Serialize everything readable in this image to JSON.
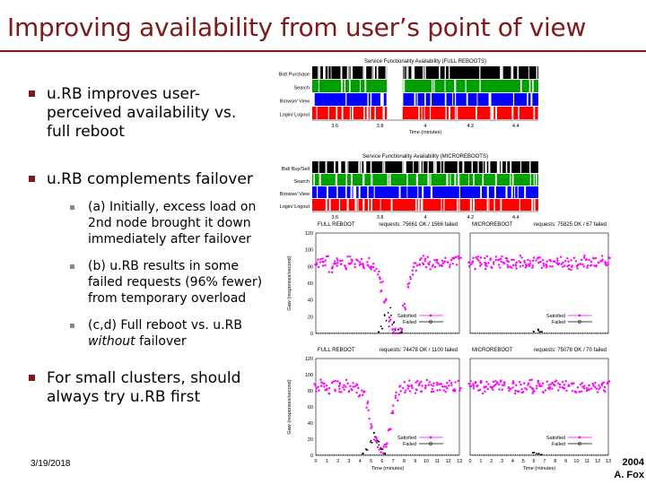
{
  "slide": {
    "title": "Improving availability from user’s point of view",
    "bullets": [
      {
        "text": "u.RB improves user-perceived availability vs. full reboot"
      },
      {
        "text": "u.RB complements failover"
      },
      {
        "text": "For small clusters, should always try u.RB first"
      }
    ],
    "sub_bullets": [
      "(a) Initially, excess load on 2nd node brought it down immediately after failover",
      "(b) u.RB results in some failed requests (96% fewer) from temporary overload",
      "(c,d) Full reboot vs. u.RB "
    ],
    "sub_bullet_emphasis": "without",
    "sub_bullet_tail": " failover",
    "footer_date": "3/19/2018",
    "corner_year": "2004",
    "corner_author": "A. Fox"
  },
  "colors": {
    "title": "#7f1a1a",
    "bullet_marker": "#7f1a1a",
    "sub_marker": "#888888",
    "series_black": "#000000",
    "series_green": "#00a000",
    "series_blue": "#0000ff",
    "series_red": "#ff0000",
    "satisfied": "#ff00ff",
    "failed": "#000000"
  },
  "chart_data": [
    {
      "type": "heatmap",
      "title": "Service Functionality Availability (FULL REBOOTS)",
      "rows": [
        "Bid/ Purchase",
        "Search",
        "Browse/ View",
        "Login/ Logout"
      ],
      "xticks": [
        "3.6",
        "3.8",
        "4",
        "4.2",
        "4.4"
      ],
      "xlabel": "Time (minutes)",
      "outage": [
        3.83,
        3.9
      ]
    },
    {
      "type": "heatmap",
      "title": "Service Functionality Availability (MICROREBOOTS)",
      "rows": [
        "Bid/ Buy/Sell",
        "Search",
        "Browse/ View",
        "Login/ Logout"
      ],
      "xticks": [
        "3.6",
        "3.8",
        "4",
        "4.2",
        "4.4"
      ],
      "xlabel": "Time (minutes)"
    },
    {
      "type": "scatter",
      "title": "FULL REBOOT",
      "stats": "requests: 75661 OK / 1566 failed",
      "ylabel": "Gaw (responses/second)",
      "yticks": [
        0,
        20,
        40,
        60,
        80,
        100,
        120
      ],
      "ylim": [
        0,
        120
      ],
      "xlim": [
        0,
        13
      ],
      "series": [
        {
          "name": "Satisfied",
          "values": [
            85,
            86,
            83,
            88,
            80,
            86,
            84,
            87,
            82,
            85,
            86,
            84,
            87,
            83,
            84,
            80,
            78,
            70,
            55,
            35,
            15,
            5,
            2,
            5,
            30,
            55,
            72,
            80,
            84,
            86,
            85,
            83,
            86,
            84,
            87,
            85,
            86,
            84,
            85,
            86
          ]
        },
        {
          "name": "Failed",
          "values": [
            0,
            0,
            0,
            0,
            0,
            0,
            0,
            0,
            0,
            0,
            0,
            0,
            0,
            0,
            0,
            0,
            0,
            2,
            8,
            20,
            30,
            15,
            5,
            1,
            0,
            0,
            0,
            0,
            0,
            0,
            0,
            0,
            0,
            0,
            0,
            0,
            0,
            0,
            0,
            0
          ]
        }
      ]
    },
    {
      "type": "scatter",
      "title": "MICROREBOOT",
      "stats": "requests: 75825 OK / 67 failed",
      "yticks": [
        0,
        20,
        40,
        60,
        80,
        100,
        120
      ],
      "ylim": [
        0,
        120
      ],
      "xlim": [
        0,
        13
      ],
      "series": [
        {
          "name": "Satisfied",
          "values": [
            86,
            84,
            85,
            87,
            83,
            86,
            84,
            86,
            85,
            87,
            84,
            86,
            85,
            83,
            86,
            84,
            85,
            87,
            84,
            86,
            85,
            84,
            86,
            85,
            87,
            84,
            86,
            85,
            83,
            86,
            84,
            85,
            87,
            84,
            86,
            85,
            84,
            86,
            85,
            86
          ]
        },
        {
          "name": "Failed",
          "values": [
            0,
            0,
            0,
            0,
            0,
            0,
            0,
            0,
            0,
            0,
            0,
            0,
            0,
            0,
            0,
            0,
            0,
            0,
            2,
            4,
            2,
            0,
            0,
            0,
            0,
            0,
            0,
            0,
            0,
            0,
            0,
            0,
            0,
            0,
            0,
            0,
            0,
            0,
            0,
            0
          ]
        }
      ]
    },
    {
      "type": "scatter",
      "title": "FULL REBOOT",
      "stats": "requests: 74478 OK / 1100 failed",
      "ylabel": "Gaw (responses/second)",
      "xlabel": "Time (minutes)",
      "yticks": [
        0,
        20,
        40,
        60,
        80,
        100,
        120
      ],
      "xticks": [
        0,
        1,
        2,
        3,
        4,
        5,
        6,
        7,
        8,
        9,
        10,
        11,
        12,
        13
      ],
      "ylim": [
        0,
        120
      ],
      "xlim": [
        0,
        13
      ],
      "series": [
        {
          "name": "Satisfied",
          "values": [
            85,
            87,
            84,
            86,
            83,
            86,
            85,
            84,
            87,
            85,
            83,
            84,
            80,
            74,
            60,
            40,
            22,
            10,
            6,
            12,
            30,
            55,
            72,
            80,
            84,
            86,
            85,
            84,
            86,
            85,
            87,
            84,
            85,
            86,
            84,
            85,
            86,
            84,
            85,
            86
          ]
        },
        {
          "name": "Failed",
          "values": [
            0,
            0,
            0,
            0,
            0,
            0,
            0,
            0,
            0,
            0,
            0,
            0,
            0,
            2,
            6,
            14,
            22,
            18,
            8,
            2,
            0,
            0,
            0,
            0,
            0,
            0,
            0,
            0,
            0,
            0,
            0,
            0,
            0,
            0,
            0,
            0,
            0,
            0,
            0,
            0
          ]
        }
      ]
    },
    {
      "type": "scatter",
      "title": "MICROREBOOT",
      "stats": "requests: 75078 OK / 70 failed",
      "xlabel": "Time (minutes)",
      "yticks": [
        0,
        20,
        40,
        60,
        80,
        100,
        120
      ],
      "xticks": [
        0,
        1,
        2,
        3,
        4,
        5,
        6,
        7,
        8,
        9,
        10,
        11,
        12,
        13
      ],
      "ylim": [
        0,
        120
      ],
      "xlim": [
        0,
        13
      ],
      "series": [
        {
          "name": "Satisfied",
          "values": [
            86,
            84,
            85,
            87,
            83,
            86,
            84,
            86,
            85,
            87,
            84,
            86,
            85,
            83,
            86,
            84,
            85,
            87,
            84,
            86,
            85,
            84,
            86,
            85,
            87,
            84,
            86,
            85,
            83,
            86,
            84,
            85,
            87,
            84,
            86,
            85,
            84,
            86,
            85,
            86
          ]
        },
        {
          "name": "Failed",
          "values": [
            0,
            0,
            0,
            0,
            0,
            0,
            0,
            0,
            0,
            0,
            0,
            0,
            0,
            0,
            0,
            0,
            0,
            0,
            3,
            2,
            1,
            0,
            0,
            0,
            0,
            0,
            0,
            0,
            0,
            0,
            0,
            0,
            0,
            0,
            0,
            0,
            0,
            0,
            0,
            0
          ]
        }
      ]
    }
  ]
}
